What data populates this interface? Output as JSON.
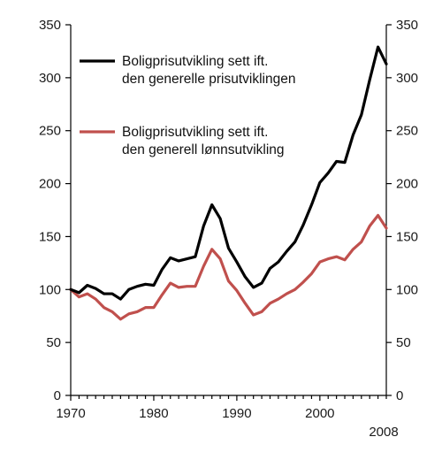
{
  "chart_data": {
    "type": "line",
    "x": [
      1970,
      1971,
      1972,
      1973,
      1974,
      1975,
      1976,
      1977,
      1978,
      1979,
      1980,
      1981,
      1982,
      1983,
      1984,
      1985,
      1986,
      1987,
      1988,
      1989,
      1990,
      1991,
      1992,
      1993,
      1994,
      1995,
      1996,
      1997,
      1998,
      1999,
      2000,
      2001,
      2002,
      2003,
      2004,
      2005,
      2006,
      2007,
      2008
    ],
    "series": [
      {
        "name": "Boligprisutvikling sett ift. den generelle prisutviklingen",
        "color": "#000000",
        "values": [
          100,
          97,
          104,
          101,
          96,
          96,
          91,
          100,
          103,
          105,
          104,
          119,
          130,
          127,
          129,
          131,
          160,
          180,
          167,
          139,
          126,
          112,
          102,
          106,
          120,
          126,
          136,
          145,
          161,
          180,
          201,
          210,
          221,
          220,
          246,
          265,
          298,
          329,
          313
        ]
      },
      {
        "name": "Boligprisutvikling sett ift. den generell lønnsutvikling",
        "color": "#c0504d",
        "values": [
          100,
          93,
          96,
          91,
          83,
          79,
          72,
          77,
          79,
          83,
          83,
          95,
          106,
          102,
          103,
          103,
          122,
          138,
          129,
          108,
          99,
          87,
          76,
          79,
          87,
          91,
          96,
          100,
          107,
          115,
          126,
          129,
          131,
          128,
          138,
          145,
          160,
          170,
          158
        ]
      }
    ],
    "y_ticks": [
      "0",
      "50",
      "100",
      "150",
      "200",
      "250",
      "300",
      "350"
    ],
    "x_ticks": [
      "1970",
      "1980",
      "1990",
      "2000"
    ],
    "x_end_label": "2008",
    "xlim": [
      1970,
      2008
    ],
    "ylim": [
      0,
      350
    ],
    "axes": "left and right y axes, bottom x axis",
    "grid": false,
    "legend_placement": "top-left"
  }
}
